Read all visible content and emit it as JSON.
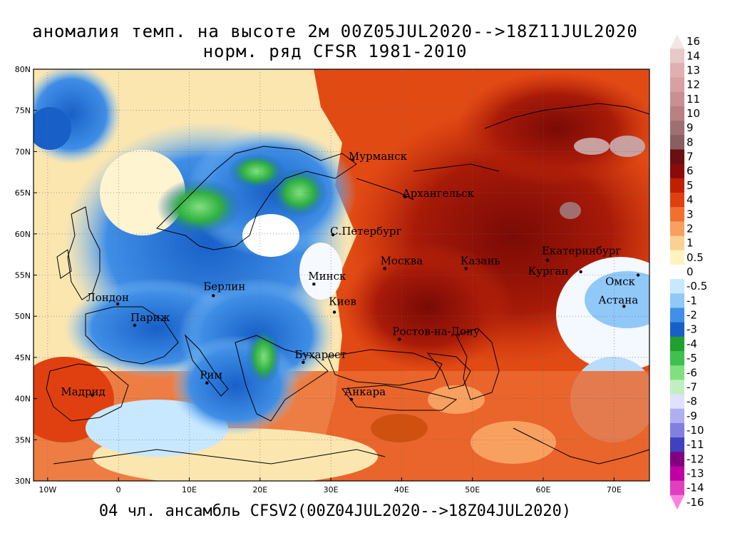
{
  "title_line1": "аномалия темп. на высоте 2м 00Z05JUL2020-->18Z11JUL2020",
  "title_line2": "норм. ряд CFSR 1981-2010",
  "footer": "04 чл. ансамбль CFSV2(00Z04JUL2020-->18Z04JUL2020)",
  "lat_labels": [
    "80N",
    "75N",
    "70N",
    "65N",
    "60N",
    "55N",
    "50N",
    "45N",
    "40N",
    "35N",
    "30N"
  ],
  "lon_labels": [
    "10W",
    "0",
    "10E",
    "20E",
    "30E",
    "40E",
    "50E",
    "60E",
    "70E"
  ],
  "cities": [
    {
      "name": "Мурманск"
    },
    {
      "name": "Архангельск"
    },
    {
      "name": "С.Петербург"
    },
    {
      "name": "Москва"
    },
    {
      "name": "Казань"
    },
    {
      "name": "Екатеринбург"
    },
    {
      "name": "Курган"
    },
    {
      "name": "Омск"
    },
    {
      "name": "Астана"
    },
    {
      "name": "Минск"
    },
    {
      "name": "Берлин"
    },
    {
      "name": "Лондон"
    },
    {
      "name": "Париж"
    },
    {
      "name": "Киев"
    },
    {
      "name": "Ростов-на-Дону"
    },
    {
      "name": "Бухарест"
    },
    {
      "name": "Мадрид"
    },
    {
      "name": "Рим"
    },
    {
      "name": "Анкара"
    }
  ],
  "colorbar": {
    "levels": [
      "16",
      "14",
      "13",
      "12",
      "11",
      "10",
      "9",
      "8",
      "7",
      "6",
      "5",
      "4",
      "3",
      "2",
      "1",
      "0.5",
      "0",
      "-0.5",
      "-1",
      "-2",
      "-3",
      "-4",
      "-5",
      "-6",
      "-7",
      "-8",
      "-9",
      "-10",
      "-11",
      "-12",
      "-13",
      "-14",
      "-16"
    ],
    "colors": [
      "#f2e6e6",
      "#e8c8c8",
      "#e0b0b0",
      "#d8a0a0",
      "#c89090",
      "#b88080",
      "#a07070",
      "#886060",
      "#6a1010",
      "#8b0a0a",
      "#c02000",
      "#e04010",
      "#f07030",
      "#f8a060",
      "#fcd090",
      "#fff4c0",
      "#ffffff",
      "#c8e8ff",
      "#90c8f8",
      "#4090e8",
      "#1860c8",
      "#20a030",
      "#40c050",
      "#80e080",
      "#c0f0c0",
      "#e0e0ff",
      "#b0b0f0",
      "#8080e0",
      "#4040c0",
      "#800080",
      "#c000a0",
      "#e040c0",
      "#ff80e0"
    ]
  }
}
